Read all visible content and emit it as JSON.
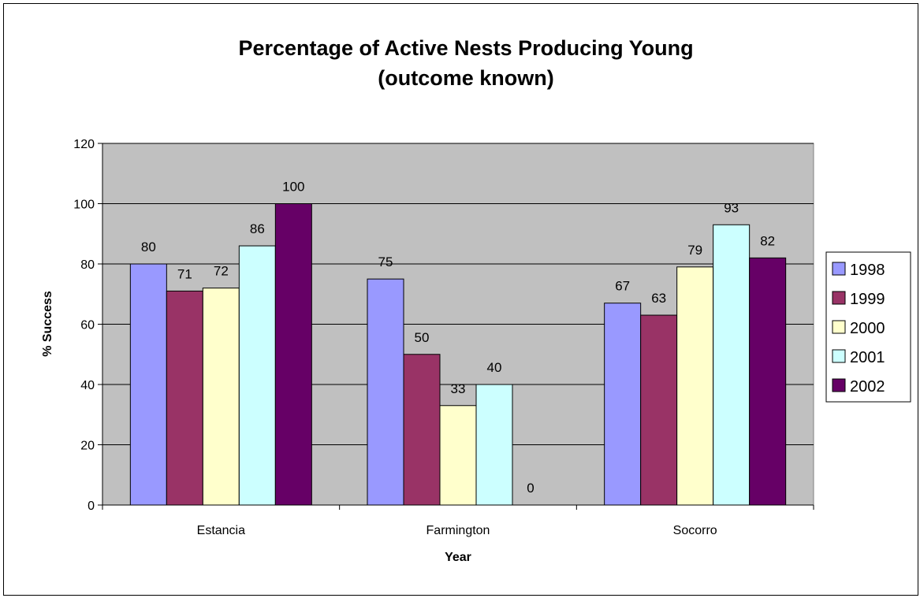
{
  "chart_data": {
    "type": "bar",
    "title_line1": "Percentage of Active Nests Producing Young",
    "title_line2": "(outcome known)",
    "xlabel": "Year",
    "ylabel": "% Success",
    "categories": [
      "Estancia",
      "Farmington",
      "Socorro"
    ],
    "series": [
      {
        "name": "1998",
        "color": "#9999ff",
        "values": [
          80,
          75,
          67
        ]
      },
      {
        "name": "1999",
        "color": "#993366",
        "values": [
          71,
          50,
          63
        ]
      },
      {
        "name": "2000",
        "color": "#ffffcc",
        "values": [
          72,
          33,
          79
        ]
      },
      {
        "name": "2001",
        "color": "#ccffff",
        "values": [
          86,
          40,
          93
        ]
      },
      {
        "name": "2002",
        "color": "#660066",
        "values": [
          100,
          0,
          82
        ]
      }
    ],
    "ylim": [
      0,
      120
    ],
    "yticks": [
      "0",
      "20",
      "40",
      "60",
      "80",
      "100",
      "120"
    ],
    "grid": true,
    "plot_background": "#c0c0c0",
    "legend_position": "right"
  }
}
